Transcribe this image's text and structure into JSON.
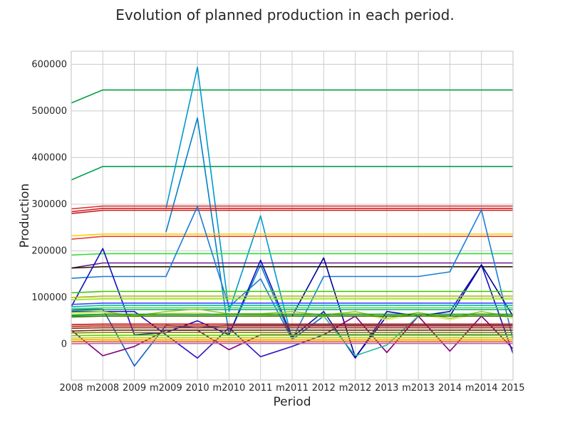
{
  "chart_data": {
    "type": "line",
    "title": "Evolution of planned production in each period.",
    "xlabel": "Period",
    "ylabel": "Production",
    "categories": [
      "2008",
      "m2008",
      "2009",
      "m2009",
      "2010",
      "m2010",
      "2011",
      "m2011",
      "2012",
      "m2012",
      "2013",
      "m2013",
      "2014",
      "m2014",
      "2015"
    ],
    "ylim": [
      -77000,
      628000
    ],
    "yticks": [
      0,
      100000,
      200000,
      300000,
      400000,
      500000,
      600000
    ],
    "ytick_labels": [
      "0",
      "100000",
      "200000",
      "300000",
      "400000",
      "500000",
      "600000"
    ],
    "grid": true,
    "legend": "none",
    "series": [
      {
        "color": "#00a040",
        "values": [
          517000,
          545000,
          545000,
          545000,
          545000,
          545000,
          545000,
          545000,
          545000,
          545000,
          545000,
          545000,
          545000,
          545000,
          545000
        ]
      },
      {
        "color": "#00a050",
        "values": [
          352000,
          381000,
          381000,
          381000,
          381000,
          381000,
          381000,
          381000,
          381000,
          381000,
          381000,
          381000,
          381000,
          381000,
          381000
        ]
      },
      {
        "color": "#0099cc",
        "values": [
          null,
          null,
          null,
          290000,
          594000,
          70000,
          275000,
          10000,
          60000,
          60000,
          60000,
          60000,
          60000,
          60000,
          60000
        ]
      },
      {
        "color": "#0080c8",
        "values": [
          null,
          null,
          null,
          240000,
          485000,
          20000,
          170000,
          10000,
          60000,
          60000,
          60000,
          60000,
          60000,
          60000,
          60000
        ]
      },
      {
        "color": "#e03030",
        "values": [
          290000,
          296000,
          296000,
          296000,
          296000,
          296000,
          296000,
          296000,
          296000,
          296000,
          296000,
          296000,
          296000,
          296000,
          296000
        ]
      },
      {
        "color": "#d02020",
        "values": [
          284000,
          291000,
          291000,
          291000,
          291000,
          291000,
          291000,
          291000,
          291000,
          291000,
          291000,
          291000,
          291000,
          291000,
          291000
        ]
      },
      {
        "color": "#c81818",
        "values": [
          280000,
          287000,
          287000,
          287000,
          287000,
          287000,
          287000,
          287000,
          287000,
          287000,
          287000,
          287000,
          287000,
          287000,
          287000
        ]
      },
      {
        "color": "#ffcc00",
        "values": [
          232000,
          236000,
          236000,
          236000,
          236000,
          236000,
          236000,
          236000,
          236000,
          236000,
          236000,
          236000,
          236000,
          236000,
          236000
        ]
      },
      {
        "color": "#e84030",
        "values": [
          225000,
          231000,
          231000,
          231000,
          231000,
          231000,
          231000,
          231000,
          231000,
          231000,
          231000,
          231000,
          231000,
          231000,
          231000
        ]
      },
      {
        "color": "#33dd33",
        "values": [
          191000,
          194000,
          194000,
          194000,
          194000,
          194000,
          194000,
          194000,
          194000,
          194000,
          194000,
          194000,
          194000,
          194000,
          194000
        ]
      },
      {
        "color": "#6a1a8a",
        "values": [
          163000,
          174000,
          174000,
          174000,
          174000,
          174000,
          174000,
          174000,
          174000,
          174000,
          174000,
          174000,
          174000,
          174000,
          174000
        ]
      },
      {
        "color": "#222200",
        "values": [
          163000,
          166000,
          166000,
          166000,
          166000,
          166000,
          166000,
          166000,
          166000,
          166000,
          166000,
          166000,
          166000,
          166000,
          166000
        ]
      },
      {
        "color": "#1a7cd8",
        "values": [
          141000,
          145000,
          145000,
          145000,
          295000,
          80000,
          140000,
          10000,
          145000,
          145000,
          145000,
          145000,
          155000,
          288000,
          10000
        ]
      },
      {
        "color": "#1010c0",
        "values": [
          80000,
          205000,
          20000,
          25000,
          50000,
          20000,
          180000,
          15000,
          70000,
          -30000,
          70000,
          60000,
          70000,
          170000,
          -20000
        ]
      },
      {
        "color": "#000099",
        "values": [
          60000,
          60000,
          60000,
          60000,
          60000,
          60000,
          60000,
          60000,
          185000,
          -28000,
          60000,
          60000,
          60000,
          170000,
          60000
        ]
      },
      {
        "color": "#1060c0",
        "values": [
          75000,
          75000,
          -47000,
          40000,
          35000,
          40000,
          40000,
          40000,
          40000,
          40000,
          40000,
          40000,
          40000,
          40000,
          40000
        ]
      },
      {
        "color": "#3010c0",
        "values": [
          70000,
          70000,
          70000,
          20000,
          -30000,
          35000,
          -27000,
          -5000,
          20000,
          20000,
          20000,
          20000,
          20000,
          20000,
          20000
        ]
      },
      {
        "color": "#800080",
        "values": [
          30000,
          -25000,
          -5000,
          30000,
          30000,
          -12000,
          20000,
          20000,
          20000,
          60000,
          -18000,
          60000,
          -15000,
          60000,
          -10000
        ]
      },
      {
        "color": "#20b8a0",
        "values": [
          60000,
          60000,
          60000,
          60000,
          60000,
          60000,
          60000,
          60000,
          60000,
          -25000,
          -2000,
          60000,
          60000,
          60000,
          60000
        ]
      },
      {
        "color": "#33cc00",
        "values": [
          110000,
          113000,
          113000,
          113000,
          113000,
          113000,
          113000,
          113000,
          113000,
          113000,
          113000,
          113000,
          113000,
          113000,
          113000
        ]
      },
      {
        "color": "#bbbb00",
        "values": [
          100000,
          103000,
          103000,
          103000,
          103000,
          103000,
          103000,
          103000,
          103000,
          103000,
          103000,
          103000,
          103000,
          103000,
          103000
        ]
      },
      {
        "color": "#88ee00",
        "values": [
          95000,
          97000,
          97000,
          97000,
          97000,
          97000,
          97000,
          97000,
          97000,
          97000,
          97000,
          97000,
          97000,
          97000,
          97000
        ]
      },
      {
        "color": "#4444ff",
        "values": [
          85000,
          88000,
          88000,
          88000,
          88000,
          88000,
          88000,
          88000,
          88000,
          88000,
          88000,
          88000,
          88000,
          88000,
          88000
        ]
      },
      {
        "color": "#00bbaa",
        "values": [
          80000,
          83000,
          83000,
          83000,
          83000,
          83000,
          83000,
          83000,
          83000,
          83000,
          83000,
          83000,
          83000,
          83000,
          83000
        ]
      },
      {
        "color": "#55dd55",
        "values": [
          76000,
          78000,
          78000,
          78000,
          78000,
          78000,
          78000,
          78000,
          78000,
          78000,
          78000,
          78000,
          78000,
          78000,
          78000
        ]
      },
      {
        "color": "#11aa77",
        "values": [
          72000,
          74000,
          74000,
          74000,
          74000,
          74000,
          74000,
          74000,
          74000,
          74000,
          74000,
          74000,
          74000,
          74000,
          74000
        ]
      },
      {
        "color": "#99cc33",
        "values": [
          68000,
          70000,
          60000,
          70000,
          75000,
          65000,
          65000,
          70000,
          62000,
          70000,
          55000,
          68000,
          55000,
          70000,
          58000
        ]
      },
      {
        "color": "#ddee88",
        "values": [
          65000,
          68000,
          58000,
          66000,
          68000,
          60000,
          62000,
          66000,
          58000,
          68000,
          52000,
          64000,
          52000,
          66000,
          55000
        ]
      },
      {
        "color": "#009900",
        "values": [
          62000,
          64000,
          64000,
          64000,
          64000,
          64000,
          64000,
          64000,
          64000,
          64000,
          64000,
          64000,
          64000,
          64000,
          64000
        ]
      },
      {
        "color": "#447700",
        "values": [
          58000,
          60000,
          60000,
          60000,
          60000,
          60000,
          60000,
          60000,
          60000,
          60000,
          60000,
          60000,
          60000,
          60000,
          60000
        ]
      },
      {
        "color": "#cc0000",
        "values": [
          42000,
          43000,
          43000,
          43000,
          43000,
          43000,
          43000,
          43000,
          43000,
          43000,
          43000,
          43000,
          43000,
          43000,
          43000
        ]
      },
      {
        "color": "#aa2200",
        "values": [
          38000,
          39000,
          39000,
          39000,
          39000,
          39000,
          39000,
          39000,
          39000,
          39000,
          39000,
          39000,
          39000,
          39000,
          39000
        ]
      },
      {
        "color": "#992222",
        "values": [
          34000,
          35000,
          35000,
          35000,
          35000,
          35000,
          35000,
          35000,
          35000,
          35000,
          35000,
          35000,
          35000,
          35000,
          35000
        ]
      },
      {
        "color": "#663300",
        "values": [
          28000,
          30000,
          30000,
          30000,
          30000,
          30000,
          30000,
          30000,
          30000,
          30000,
          30000,
          30000,
          30000,
          30000,
          30000
        ]
      },
      {
        "color": "#888800",
        "values": [
          24000,
          25000,
          25000,
          25000,
          25000,
          25000,
          25000,
          25000,
          25000,
          25000,
          25000,
          25000,
          25000,
          25000,
          25000
        ]
      },
      {
        "color": "#66cc00",
        "values": [
          18000,
          19000,
          19000,
          19000,
          19000,
          19000,
          19000,
          19000,
          19000,
          19000,
          19000,
          19000,
          19000,
          19000,
          19000
        ]
      },
      {
        "color": "#aadd00",
        "values": [
          13000,
          14000,
          14000,
          14000,
          14000,
          14000,
          14000,
          14000,
          14000,
          14000,
          14000,
          14000,
          14000,
          14000,
          14000
        ]
      },
      {
        "color": "#ffaa00",
        "values": [
          9000,
          10000,
          10000,
          10000,
          10000,
          10000,
          10000,
          10000,
          10000,
          10000,
          10000,
          10000,
          10000,
          10000,
          10000
        ]
      },
      {
        "color": "#dd6600",
        "values": [
          5000,
          6000,
          6000,
          6000,
          6000,
          6000,
          6000,
          6000,
          6000,
          6000,
          6000,
          6000,
          6000,
          6000,
          6000
        ]
      },
      {
        "color": "#cc66aa",
        "values": [
          1000,
          2000,
          2000,
          2000,
          2000,
          2000,
          2000,
          2000,
          2000,
          2000,
          2000,
          2000,
          2000,
          2000,
          2000
        ]
      }
    ]
  }
}
